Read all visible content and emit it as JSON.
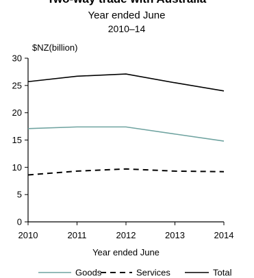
{
  "chart_data": {
    "type": "line",
    "title": "Two-way trade with Australia",
    "subtitle": "Year ended June",
    "subtitle2": "2010–14",
    "unit_label": "$NZ(billion)",
    "xlabel": "Year ended June",
    "ylabel": "",
    "x": [
      2010,
      2011,
      2012,
      2013,
      2014
    ],
    "x_tick_labels": [
      "2010",
      "2011",
      "2012",
      "2013",
      "2014"
    ],
    "y_ticks": [
      0,
      5,
      10,
      15,
      20,
      25,
      30
    ],
    "y_tick_labels": [
      "0",
      "5",
      "10",
      "15",
      "20",
      "25",
      "30"
    ],
    "ylim": [
      0,
      30
    ],
    "grid": false,
    "legend_position": "bottom",
    "series": [
      {
        "name": "Goods",
        "values": [
          17.1,
          17.4,
          17.4,
          16.1,
          14.8
        ],
        "color": "#6fa3a0",
        "dash": "solid"
      },
      {
        "name": "Services",
        "values": [
          8.6,
          9.3,
          9.7,
          9.3,
          9.2
        ],
        "color": "#000000",
        "dash": "dashed"
      },
      {
        "name": "Total",
        "values": [
          25.7,
          26.7,
          27.1,
          25.5,
          24.0
        ],
        "color": "#000000",
        "dash": "solid"
      }
    ]
  }
}
